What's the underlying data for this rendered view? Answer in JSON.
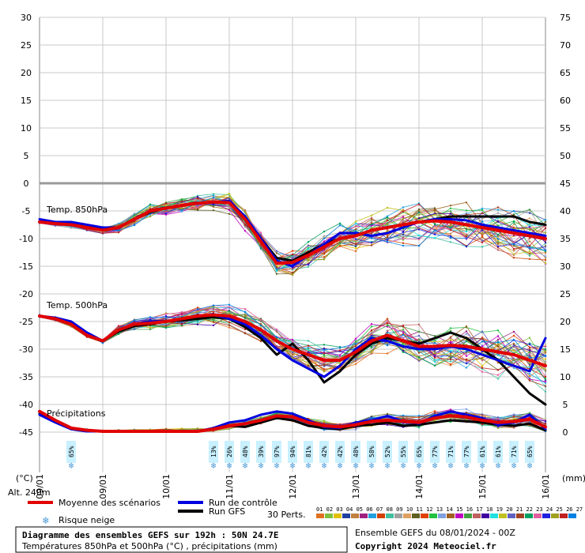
{
  "chart_data": {
    "type": "line",
    "left_axis": {
      "unit_label": "(°C)",
      "ticks": [
        "30",
        "25",
        "20",
        "15",
        "10",
        "5",
        "0",
        "-5",
        "-10",
        "-15",
        "-20",
        "-25",
        "-30",
        "-35",
        "-40",
        "-45"
      ]
    },
    "right_axis": {
      "unit_label": "(mm)",
      "ticks": [
        "75",
        "70",
        "65",
        "60",
        "55",
        "50",
        "45",
        "40",
        "35",
        "30",
        "25",
        "20",
        "15",
        "10",
        "5",
        "0"
      ]
    },
    "x_labels": [
      "09/01",
      "09/01",
      "10/01",
      "11/01",
      "12/01",
      "13/01",
      "14/01",
      "15/01",
      "16/01"
    ],
    "x_hours": [
      0,
      24,
      48,
      72,
      96,
      120,
      144,
      168,
      192
    ],
    "alt_label": "Alt. 240m",
    "panel_labels": {
      "t850": "Temp. 850hPa",
      "t500": "Temp. 500hPa",
      "precip": "Précipitations"
    },
    "snow_risk": [
      {
        "hour": 12,
        "pct": "65%"
      },
      {
        "hour": 66,
        "pct": "13%"
      },
      {
        "hour": 72,
        "pct": "26%"
      },
      {
        "hour": 78,
        "pct": "48%"
      },
      {
        "hour": 84,
        "pct": "39%"
      },
      {
        "hour": 90,
        "pct": "97%"
      },
      {
        "hour": 96,
        "pct": "94%"
      },
      {
        "hour": 102,
        "pct": "81%"
      },
      {
        "hour": 108,
        "pct": "42%"
      },
      {
        "hour": 114,
        "pct": "42%"
      },
      {
        "hour": 120,
        "pct": "48%"
      },
      {
        "hour": 126,
        "pct": "58%"
      },
      {
        "hour": 132,
        "pct": "52%"
      },
      {
        "hour": 138,
        "pct": "55%"
      },
      {
        "hour": 144,
        "pct": "65%"
      },
      {
        "hour": 150,
        "pct": "77%"
      },
      {
        "hour": 156,
        "pct": "71%"
      },
      {
        "hour": 162,
        "pct": "77%"
      },
      {
        "hour": 168,
        "pct": "61%"
      },
      {
        "hour": 174,
        "pct": "61%"
      },
      {
        "hour": 180,
        "pct": "71%"
      },
      {
        "hour": 186,
        "pct": "65%"
      }
    ],
    "hours": [
      0,
      6,
      12,
      18,
      24,
      30,
      36,
      42,
      48,
      54,
      60,
      66,
      72,
      78,
      84,
      90,
      96,
      102,
      108,
      114,
      120,
      126,
      132,
      138,
      144,
      150,
      156,
      162,
      168,
      174,
      180,
      186,
      192
    ],
    "series": [
      {
        "name": "Moyenne des scénarios",
        "panel": "t850",
        "color": "#e00000",
        "width": 4,
        "values": [
          -7,
          -7.3,
          -7.5,
          -8,
          -8.5,
          -8,
          -6.5,
          -5,
          -4.5,
          -4,
          -3.6,
          -3.4,
          -3.5,
          -6.5,
          -10.5,
          -14.5,
          -14.3,
          -13,
          -11.5,
          -10,
          -9.5,
          -8.5,
          -8,
          -7.5,
          -7,
          -6.8,
          -7,
          -7.5,
          -8,
          -8.5,
          -9,
          -9.5,
          -10
        ]
      },
      {
        "name": "Run de contrôle",
        "panel": "t850",
        "color": "#0000e0",
        "width": 3,
        "values": [
          -6.5,
          -7,
          -7,
          -7.5,
          -8,
          -8,
          -6.5,
          -5,
          -4.5,
          -4,
          -3.5,
          -3.5,
          -3.2,
          -6,
          -10,
          -14,
          -15,
          -13,
          -11,
          -9,
          -9,
          -9.5,
          -9,
          -8,
          -7,
          -6.5,
          -6.5,
          -6.7,
          -7.5,
          -8,
          -8.5,
          -9,
          -9.5
        ]
      },
      {
        "name": "Run GFS",
        "panel": "t850",
        "color": "#000000",
        "width": 3,
        "values": [
          -7,
          -7.2,
          -7.5,
          -8,
          -8.3,
          -8,
          -6.5,
          -5.2,
          -4.5,
          -4,
          -3.5,
          -3.4,
          -3.6,
          -6.2,
          -10,
          -13.5,
          -14,
          -12.5,
          -11,
          -10,
          -9.5,
          -8.5,
          -8,
          -7.5,
          -7,
          -6.5,
          -6,
          -6,
          -6,
          -6,
          -6,
          -7,
          -7.5
        ]
      },
      {
        "name": "Moyenne des scénarios",
        "panel": "t500",
        "color": "#e00000",
        "width": 4,
        "values": [
          -24,
          -24.5,
          -25.5,
          -27.5,
          -28.5,
          -26.5,
          -25.5,
          -25.3,
          -25,
          -24.5,
          -24,
          -23.8,
          -24,
          -25,
          -26.5,
          -28.5,
          -30,
          -31,
          -32,
          -32,
          -30.5,
          -28.5,
          -27.5,
          -28.5,
          -29.5,
          -29.5,
          -29.3,
          -29.5,
          -30,
          -30.5,
          -31,
          -32,
          -33
        ]
      },
      {
        "name": "Run de contrôle",
        "panel": "t500",
        "color": "#0000e0",
        "width": 3,
        "values": [
          -24,
          -24.3,
          -25,
          -27,
          -28.5,
          -26.5,
          -25.5,
          -25,
          -25,
          -24.5,
          -24,
          -23.8,
          -24.5,
          -25.5,
          -27.5,
          -30,
          -32,
          -33.5,
          -35,
          -33,
          -30,
          -28,
          -28.5,
          -29.5,
          -30,
          -30,
          -29.5,
          -30,
          -31,
          -32,
          -33,
          -34,
          -28
        ]
      },
      {
        "name": "Run GFS",
        "panel": "t500",
        "color": "#000000",
        "width": 3,
        "values": [
          -24,
          -24.5,
          -25.3,
          -27.5,
          -28.5,
          -26.8,
          -25.8,
          -25.5,
          -25,
          -24.8,
          -24.5,
          -24.2,
          -24.5,
          -26,
          -28,
          -31,
          -29,
          -32,
          -36,
          -34,
          -31,
          -29,
          -28,
          -28.5,
          -29,
          -28,
          -27,
          -28,
          -30,
          -32,
          -35,
          -38,
          -40
        ]
      },
      {
        "name": "Moyenne des scénarios",
        "panel": "precip",
        "color": "#e00000",
        "width": 4,
        "values": [
          1.8,
          1.0,
          0.3,
          0.1,
          0,
          0,
          0,
          0,
          0,
          0,
          0,
          0.2,
          0.5,
          0.7,
          1.0,
          1.4,
          1.3,
          0.8,
          0.5,
          0.4,
          0.6,
          0.9,
          1.0,
          0.9,
          0.8,
          1.2,
          1.4,
          1.3,
          1.0,
          0.8,
          0.9,
          1.1,
          0.4
        ]
      },
      {
        "name": "Run de contrôle",
        "panel": "precip",
        "color": "#0000e0",
        "width": 3,
        "values": [
          1.5,
          0.8,
          0.2,
          0,
          0,
          0,
          0,
          0,
          0,
          0,
          0,
          0.3,
          0.8,
          1.0,
          1.5,
          1.8,
          1.6,
          1.0,
          0.4,
          0.3,
          0.8,
          1.0,
          1.4,
          0.9,
          0.7,
          1.4,
          1.8,
          1.5,
          1.2,
          0.6,
          0.8,
          1.5,
          0.2
        ]
      },
      {
        "name": "Run GFS",
        "panel": "precip",
        "color": "#000000",
        "width": 3,
        "values": [
          1.6,
          0.9,
          0.2,
          0,
          0,
          0,
          0,
          0,
          0,
          0,
          0,
          0.2,
          0.5,
          0.4,
          0.8,
          1.2,
          1.0,
          0.5,
          0.3,
          0.2,
          0.5,
          0.6,
          0.8,
          0.5,
          0.6,
          0.8,
          1.0,
          0.9,
          0.8,
          0.6,
          0.5,
          0.7,
          0.1
        ]
      }
    ]
  },
  "legend": {
    "mean": "Moyenne des scénarios",
    "control": "Run de contrôle",
    "gfs": "Run GFS",
    "snow": "Risque neige",
    "perts_label": "30 Perts.",
    "perts_numbers": "01 02 03 04 05 06 07 08 09 10 11 12 13 14 15 16 17 18 19 20 21 22 23 24 25 26 27 28 29 30",
    "colors": [
      "#e07020",
      "#80c040",
      "#e0c000",
      "#2040a0",
      "#c08040",
      "#a02080",
      "#20a0e0",
      "#d04000",
      "#40c0a0",
      "#a0a0a0",
      "#e0a060",
      "#606020",
      "#e04000",
      "#20c040",
      "#80a0e0",
      "#a06020",
      "#c000c0",
      "#40a040",
      "#c06060",
      "#4000a0",
      "#20e0e0",
      "#c0c020",
      "#6060c0",
      "#a04020",
      "#00a060",
      "#e060a0",
      "#2020e0",
      "#a0a020",
      "#c02020",
      "#0080e0"
    ]
  },
  "footer": {
    "title": "Diagramme des ensembles GEFS sur 192h : 50N 24.7E",
    "subtitle": "Températures 850hPa et 500hPa (°C) , précipitations (mm)",
    "run": "Ensemble GEFS du 08/01/2024 - 00Z",
    "copyright": "Copyright 2024 Meteociel.fr"
  }
}
